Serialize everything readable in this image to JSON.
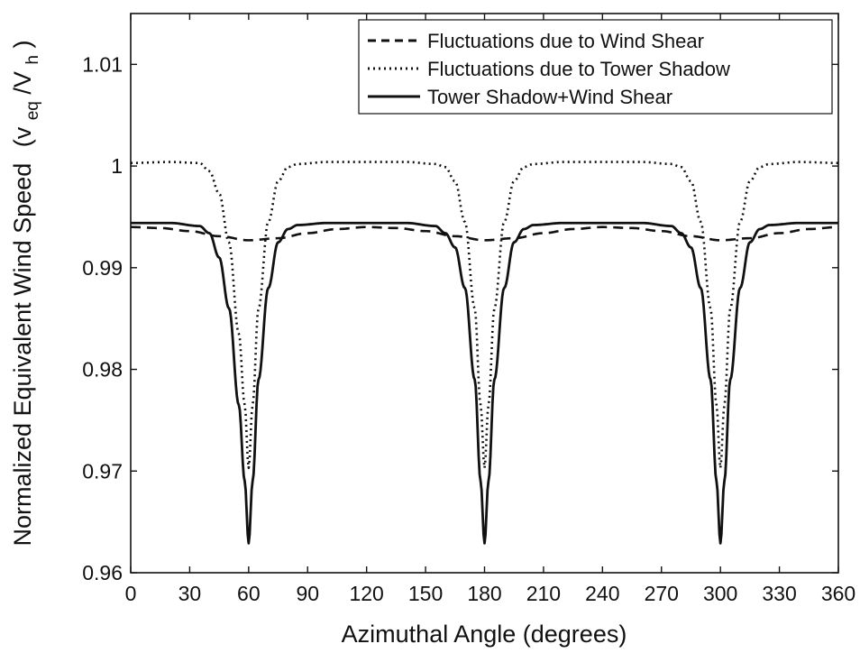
{
  "chart_data": {
    "type": "line",
    "title": "",
    "xlabel": "Azimuthal Angle (degrees)",
    "ylabel": {
      "main": "Normalized Equivalent Wind Speed",
      "open": "(v",
      "sub1": "eq",
      "mid": "/V",
      "sub2": "h",
      "close": ")"
    },
    "xlim": [
      0,
      360
    ],
    "ylim": [
      0.96,
      1.015
    ],
    "xticks": [
      0,
      30,
      60,
      90,
      120,
      150,
      180,
      210,
      240,
      270,
      300,
      330,
      360
    ],
    "yticks": [
      0.96,
      0.97,
      0.98,
      0.99,
      1,
      1.01
    ],
    "ytick_labels": [
      "0.96",
      "0.97",
      "0.98",
      "0.99",
      "1",
      "1.01"
    ],
    "grid": false,
    "legend_position": "top-right",
    "series": [
      {
        "name": "Fluctuations due to Wind Shear",
        "style": "dashed",
        "color": "#111111",
        "x": [
          0,
          15,
          30,
          45,
          60,
          75,
          90,
          105,
          120,
          135,
          150,
          165,
          180,
          195,
          210,
          225,
          240,
          255,
          270,
          285,
          300,
          315,
          330,
          345,
          360
        ],
        "y": [
          0.994,
          0.9939,
          0.9936,
          0.9931,
          0.9927,
          0.9929,
          0.9934,
          0.9938,
          0.994,
          0.9939,
          0.9936,
          0.9931,
          0.9927,
          0.9929,
          0.9934,
          0.9938,
          0.994,
          0.9939,
          0.9936,
          0.9931,
          0.9927,
          0.9929,
          0.9934,
          0.9938,
          0.994
        ]
      },
      {
        "name": "Fluctuations due to Tower Shadow",
        "style": "dotted",
        "color": "#111111",
        "x": [
          0,
          20,
          35,
          40,
          45,
          50,
          55,
          58,
          60,
          62,
          65,
          70,
          75,
          80,
          85,
          100,
          140,
          155,
          160,
          165,
          170,
          175,
          178,
          180,
          182,
          185,
          190,
          195,
          200,
          205,
          220,
          260,
          275,
          280,
          285,
          290,
          295,
          298,
          300,
          302,
          305,
          310,
          315,
          320,
          325,
          340,
          360
        ],
        "y": [
          1.0003,
          1.0004,
          1.0003,
          0.9995,
          0.9973,
          0.9925,
          0.9835,
          0.9765,
          0.9703,
          0.9765,
          0.986,
          0.9945,
          0.9985,
          0.9999,
          1.0002,
          1.0004,
          1.0004,
          1.0002,
          0.9999,
          0.9985,
          0.9945,
          0.986,
          0.9765,
          0.9703,
          0.9765,
          0.986,
          0.9945,
          0.9985,
          0.9999,
          1.0002,
          1.0004,
          1.0004,
          1.0002,
          0.9999,
          0.9985,
          0.9945,
          0.986,
          0.9765,
          0.9703,
          0.9765,
          0.986,
          0.9945,
          0.9985,
          0.9999,
          1.0002,
          1.0004,
          1.0003
        ]
      },
      {
        "name": "Tower Shadow+Wind Shear",
        "style": "solid",
        "color": "#111111",
        "x": [
          0,
          20,
          35,
          40,
          45,
          50,
          55,
          58,
          60,
          62,
          65,
          70,
          75,
          80,
          85,
          100,
          140,
          155,
          160,
          165,
          170,
          175,
          178,
          180,
          182,
          185,
          190,
          195,
          200,
          205,
          220,
          260,
          275,
          280,
          285,
          290,
          295,
          298,
          300,
          302,
          305,
          310,
          315,
          320,
          325,
          340,
          360
        ],
        "y": [
          0.9944,
          0.9944,
          0.9941,
          0.9934,
          0.991,
          0.986,
          0.9765,
          0.969,
          0.9629,
          0.969,
          0.979,
          0.988,
          0.9925,
          0.9938,
          0.9942,
          0.9944,
          0.9944,
          0.9941,
          0.9934,
          0.992,
          0.988,
          0.979,
          0.969,
          0.9629,
          0.969,
          0.979,
          0.988,
          0.9925,
          0.9938,
          0.9942,
          0.9944,
          0.9944,
          0.9941,
          0.9934,
          0.992,
          0.988,
          0.979,
          0.969,
          0.9629,
          0.969,
          0.979,
          0.988,
          0.9925,
          0.9938,
          0.9942,
          0.9944,
          0.9944
        ]
      }
    ]
  }
}
